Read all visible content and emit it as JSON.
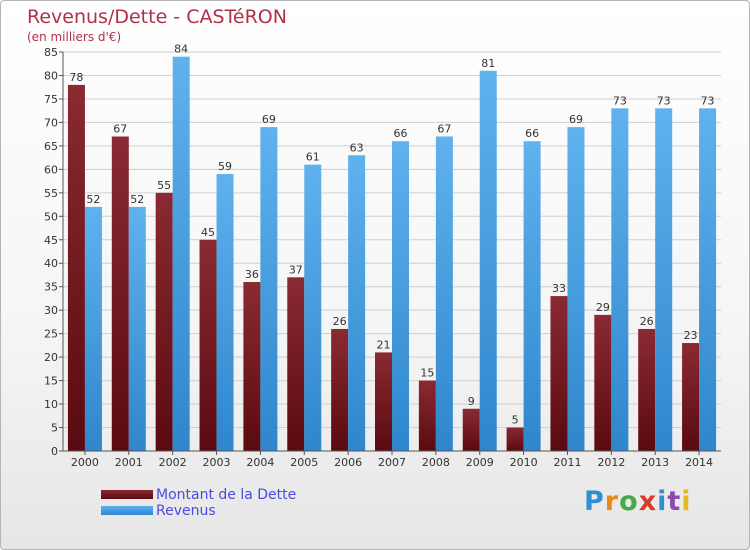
{
  "title": "Revenus/Dette - CASTéRON",
  "subtitle": "(en milliers d'€)",
  "logo_text": "Proxiti",
  "colors": {
    "dette": "#7a1c24",
    "revenus": "#4aa2e4",
    "title": "#b0304a",
    "legend_text": "#4a4ae0"
  },
  "legend": [
    {
      "label": "Montant de la Dette",
      "color": "#7a1c24"
    },
    {
      "label": "Revenus",
      "color": "#4aa2e4"
    }
  ],
  "chart_data": {
    "type": "bar",
    "title": "Revenus/Dette - CASTéRON",
    "subtitle": "(en milliers d'€)",
    "categories": [
      "2000",
      "2001",
      "2002",
      "2003",
      "2004",
      "2005",
      "2006",
      "2007",
      "2008",
      "2009",
      "2010",
      "2011",
      "2012",
      "2013",
      "2014"
    ],
    "series": [
      {
        "name": "Montant de la Dette",
        "values": [
          78,
          67,
          55,
          45,
          36,
          37,
          26,
          21,
          15,
          9,
          5,
          33,
          29,
          26,
          23
        ]
      },
      {
        "name": "Revenus",
        "values": [
          52,
          52,
          84,
          59,
          69,
          61,
          63,
          66,
          67,
          81,
          66,
          69,
          73,
          73,
          73
        ]
      }
    ],
    "ylim": [
      0,
      85
    ],
    "yticks": [
      0,
      5,
      10,
      15,
      20,
      25,
      30,
      35,
      40,
      45,
      50,
      55,
      60,
      65,
      70,
      75,
      80,
      85
    ],
    "grid": true,
    "legend_position": "bottom-left"
  }
}
